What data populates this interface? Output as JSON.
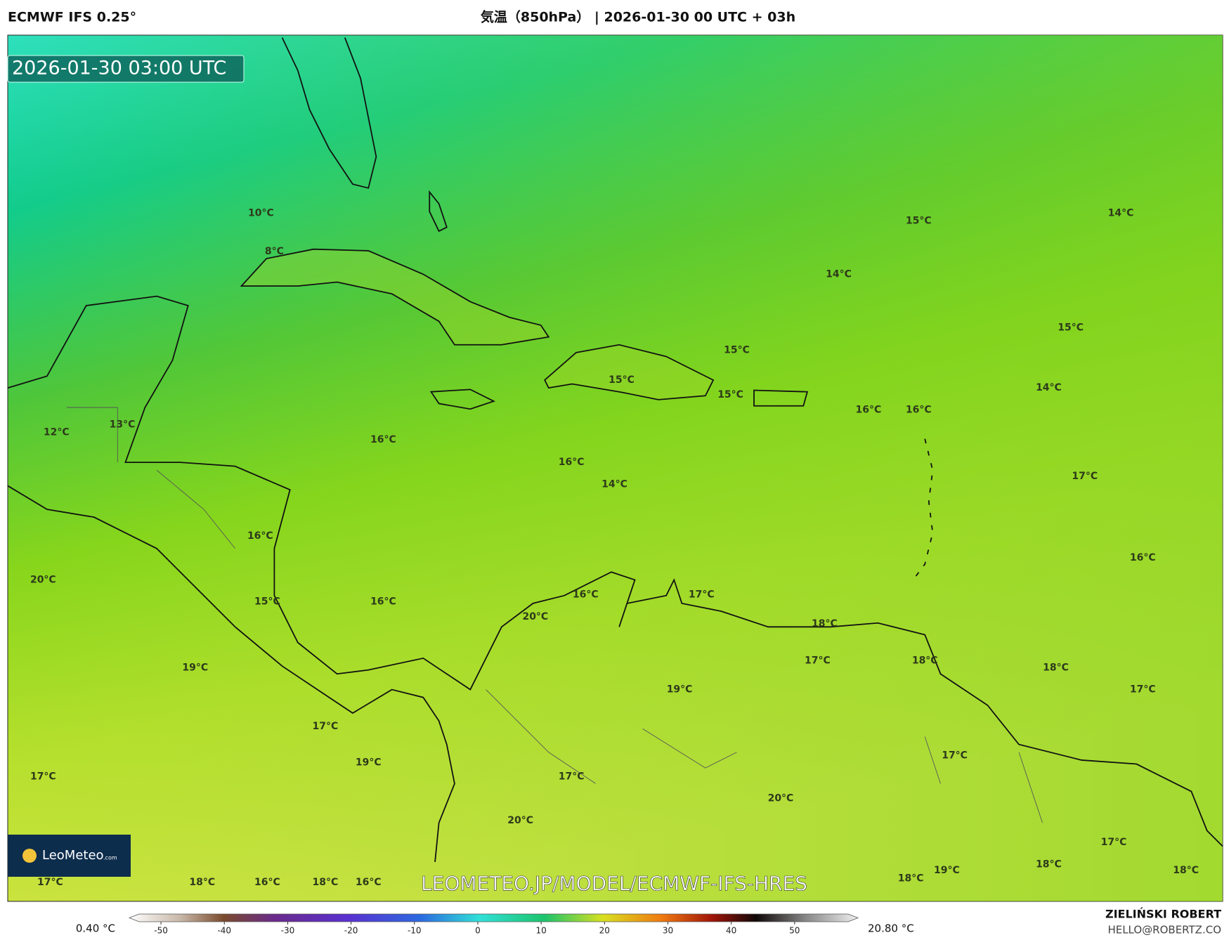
{
  "header": {
    "model": "ECMWF IFS 0.25°",
    "title": "気温（850hPa） | 2026-01-30 00 UTC + 03h"
  },
  "map": {
    "valid_time": "2026-01-30 03:00 UTC",
    "watermark": "LEOMETEO.JP/MODEL/ECMWF-IFS-HRES",
    "logo": {
      "name": "LeoMeteo",
      "suffix": ".com"
    },
    "labels": [
      "10°C",
      "8°C",
      "12°C",
      "13°C",
      "16°C",
      "16°C",
      "14°C",
      "15°C",
      "14°C",
      "14°C",
      "15°C",
      "15°C",
      "15°C",
      "15°C",
      "14°C",
      "16°C",
      "16°C",
      "17°C",
      "16°C",
      "20°C",
      "16°C",
      "15°C",
      "16°C",
      "16°C",
      "17°C",
      "20°C",
      "18°C",
      "19°C",
      "17°C",
      "18°C",
      "18°C",
      "19°C",
      "17°C",
      "17°C",
      "19°C",
      "17°C",
      "17°C",
      "17°C",
      "20°C",
      "20°C",
      "17°C",
      "18°C",
      "16°C",
      "18°C",
      "16°C",
      "17°C",
      "18°C",
      "19°C",
      "18°C",
      "18°C"
    ]
  },
  "colorbar": {
    "min_label": "0.40 °C",
    "max_label": "20.80 °C",
    "range": [
      -55,
      60
    ],
    "ticks": [
      -50,
      -40,
      -30,
      -20,
      -10,
      0,
      10,
      20,
      30,
      40,
      50
    ]
  },
  "footer": {
    "author": "ZIELIŃSKI ROBERT",
    "email": "HELLO@ROBERTZ.CO"
  }
}
